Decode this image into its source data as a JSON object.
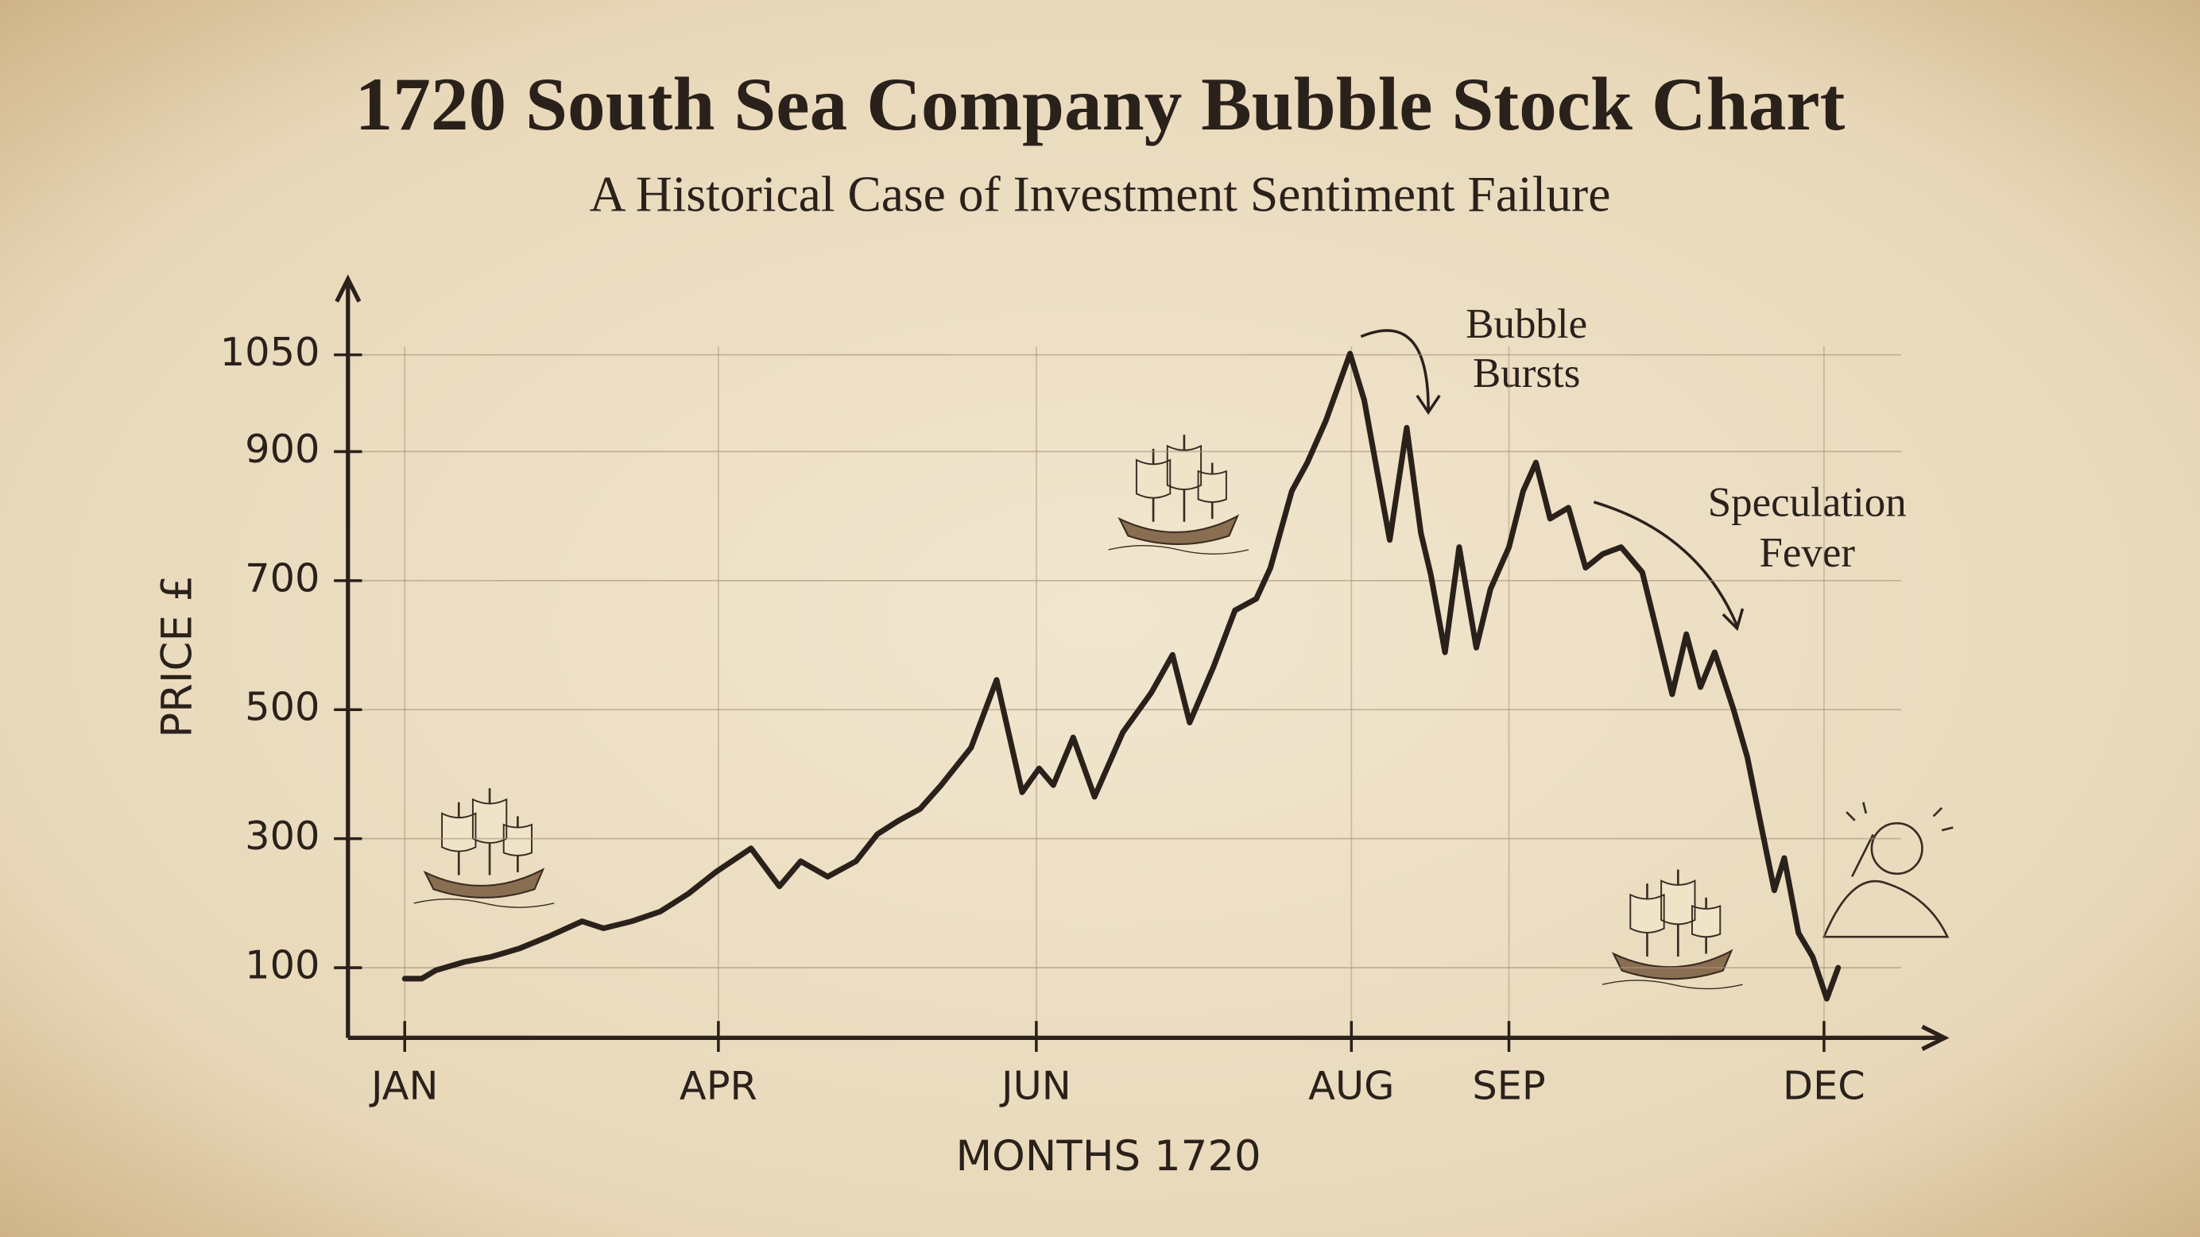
{
  "chart_data": {
    "type": "line",
    "title": "1720 South Sea Company Bubble Stock Chart",
    "subtitle": "A Historical Case of Investment Sentiment Failure",
    "x_label": "MONTHS 1720",
    "y_label": "PRICE £",
    "color": "#2b211b",
    "grid": true,
    "x": [
      0,
      0.12,
      0.22,
      0.42,
      0.61,
      0.81,
      1.01,
      1.25,
      1.4,
      1.6,
      1.8,
      2.0,
      2.19,
      2.44,
      2.64,
      2.79,
      2.98,
      3.18,
      3.33,
      3.48,
      3.63,
      3.78,
      3.99,
      4.17,
      4.35,
      4.47,
      4.57,
      4.71,
      4.86,
      5.06,
      5.26,
      5.41,
      5.53,
      5.7,
      5.85,
      6.0,
      6.1,
      6.25,
      6.36,
      6.49,
      6.66,
      6.76,
      6.84,
      6.94,
      7.06,
      7.16,
      7.23,
      7.33,
      7.43,
      7.55,
      7.65,
      7.78,
      7.88,
      7.97,
      8.07,
      8.2,
      8.32,
      8.44,
      8.57,
      8.72,
      8.81,
      8.93,
      9.03,
      9.13,
      9.23,
      9.36,
      9.46,
      9.56,
      9.65,
      9.72,
      9.82,
      9.92,
      10.02,
      10.1
    ],
    "values": [
      83,
      83,
      96,
      109,
      117,
      130,
      148,
      172,
      161,
      172,
      187,
      215,
      248,
      285,
      226,
      265,
      241,
      265,
      307,
      328,
      346,
      383,
      441,
      546,
      372,
      409,
      383,
      457,
      365,
      465,
      526,
      585,
      480,
      567,
      654,
      672,
      720,
      839,
      883,
      948,
      1052,
      980,
      883,
      763,
      937,
      774,
      709,
      589,
      752,
      596,
      687,
      752,
      839,
      883,
      796,
      813,
      720,
      741,
      752,
      713,
      633,
      524,
      617,
      535,
      589,
      502,
      426,
      317,
      220,
      270,
      154,
      117,
      52,
      100
    ],
    "xlim": [
      -0.4,
      10.85
    ],
    "xticks": [
      {
        "value": 0,
        "label": "JAN"
      },
      {
        "value": 2.21,
        "label": "APR"
      },
      {
        "value": 4.45,
        "label": "JUN"
      },
      {
        "value": 6.67,
        "label": "AUG"
      },
      {
        "value": 7.78,
        "label": "SEP"
      },
      {
        "value": 10,
        "label": "DEC"
      }
    ],
    "ylim": [
      0,
      1150
    ],
    "yticks": [
      100,
      300,
      500,
      700,
      900,
      1050
    ],
    "annotations": [
      [
        "Bubble",
        "Bursts"
      ],
      [
        "Speculation",
        "Fever"
      ]
    ]
  }
}
